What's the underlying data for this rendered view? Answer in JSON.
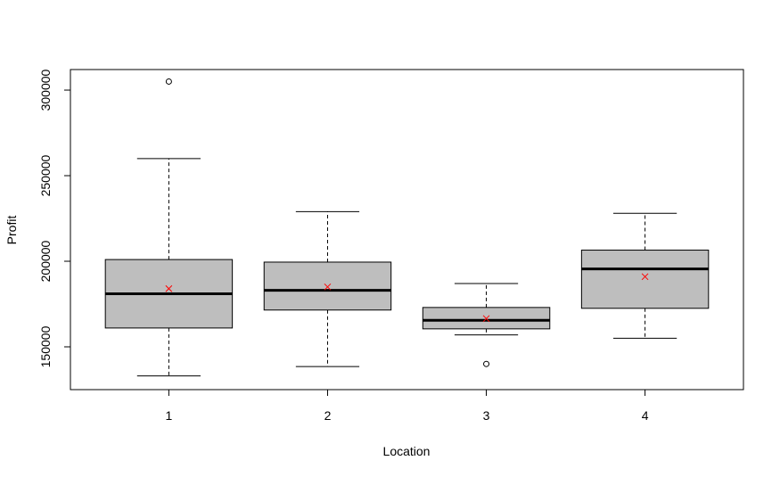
{
  "chart_data": {
    "type": "boxplot",
    "xlabel": "Location",
    "ylabel": "Profit",
    "categories": [
      "1",
      "2",
      "3",
      "4"
    ],
    "ylim": [
      125000,
      312000
    ],
    "yticks": [
      150000,
      200000,
      250000,
      300000
    ],
    "grid": false,
    "box_color": "#bebebe",
    "mean_color": "#ff0000",
    "boxes": [
      {
        "category": "1",
        "whisker_low": 133000,
        "q1": 161000,
        "median": 181000,
        "q3": 201000,
        "whisker_high": 260000,
        "mean": 184000,
        "outliers": [
          305000
        ]
      },
      {
        "category": "2",
        "whisker_low": 138500,
        "q1": 171500,
        "median": 183000,
        "q3": 199500,
        "whisker_high": 229000,
        "mean": 185000,
        "outliers": []
      },
      {
        "category": "3",
        "whisker_low": 157000,
        "q1": 160500,
        "median": 165500,
        "q3": 173000,
        "whisker_high": 187000,
        "mean": 166500,
        "outliers": [
          140000
        ]
      },
      {
        "category": "4",
        "whisker_low": 155000,
        "q1": 172500,
        "median": 195500,
        "q3": 206500,
        "whisker_high": 228000,
        "mean": 191000,
        "outliers": []
      }
    ]
  }
}
